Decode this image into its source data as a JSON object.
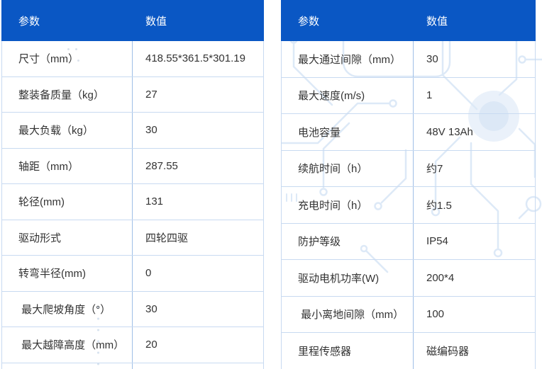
{
  "colors": {
    "header_bg": "#0a57c4",
    "header_text": "#ffffff",
    "cell_text": "#333333",
    "divider": "#9fbfe7",
    "row_border": "#c8daf1",
    "watermark": "#dde9f7"
  },
  "tables": [
    {
      "name": "left-spec-table",
      "headers": [
        "参数",
        "数值"
      ],
      "rows": [
        {
          "param": "尺寸（mm）",
          "value": "418.55*361.5*301.19"
        },
        {
          "param": "整装备质量（kg）",
          "value": "27"
        },
        {
          "param": "最大负载（kg）",
          "value": "30"
        },
        {
          "param": "轴距（mm）",
          "value": "287.55"
        },
        {
          "param": "轮径(mm)",
          "value": "131"
        },
        {
          "param": "驱动形式",
          "value": "四轮四驱"
        },
        {
          "param": "转弯半径(mm)",
          "value": "0"
        },
        {
          "param": " 最大爬坡角度（°）",
          "value": "30"
        },
        {
          "param": " 最大越障高度（mm）",
          "value": "20"
        }
      ]
    },
    {
      "name": "right-spec-table",
      "headers": [
        "参数",
        "数值"
      ],
      "rows": [
        {
          "param": "最大通过间隙（mm）",
          "value": "30"
        },
        {
          "param": "最大速度(m/s)",
          "value": "1"
        },
        {
          "param": "电池容量",
          "value": "48V 13Ah"
        },
        {
          "param": "续航时间（h）",
          "value": "约7"
        },
        {
          "param": "充电时间（h）",
          "value": "约1.5"
        },
        {
          "param": "防护等级",
          "value": "IP54"
        },
        {
          "param": "驱动电机功率(W)",
          "value": "200*4"
        },
        {
          "param": " 最小离地间隙（mm）",
          "value": "100"
        },
        {
          "param": "里程传感器",
          "value": "磁编码器"
        }
      ]
    }
  ]
}
